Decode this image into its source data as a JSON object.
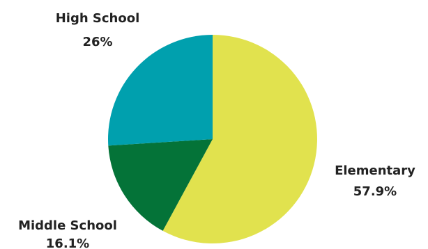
{
  "chart_data": {
    "type": "pie",
    "start_angle_deg": 0,
    "direction": "clockwise",
    "slices": [
      {
        "label": "Elementary",
        "value": 57.9,
        "value_label": "57.9%",
        "color": "#E1E24E"
      },
      {
        "label": "Middle School",
        "value": 16.1,
        "value_label": "16.1%",
        "color": "#047338"
      },
      {
        "label": "High School",
        "value": 26.0,
        "value_label": "26%",
        "color": "#00A0AE"
      }
    ]
  }
}
